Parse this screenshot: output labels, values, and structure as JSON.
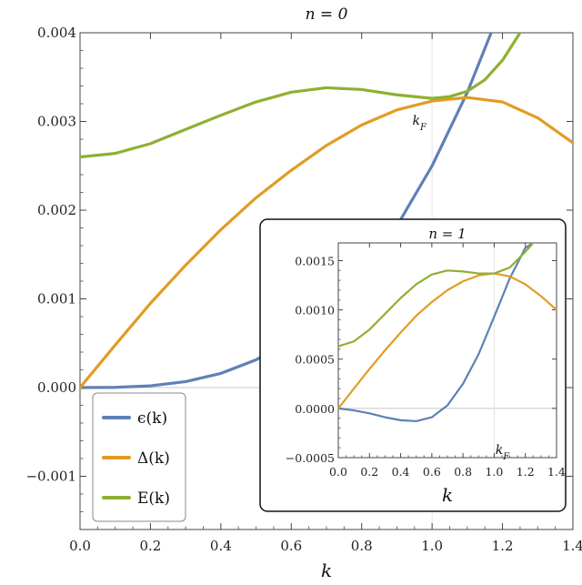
{
  "chart_data": [
    {
      "type": "line",
      "title": "n = 0",
      "xlabel": "k",
      "ylabel": "",
      "xlim": [
        0,
        1.4
      ],
      "ylim": [
        -0.0016,
        0.004
      ],
      "x_ticks": [
        "0.0",
        "0.2",
        "0.4",
        "0.6",
        "0.8",
        "1.0",
        "1.2",
        "1.4"
      ],
      "y_ticks": [
        "0.004",
        "0.003",
        "0.002",
        "0.001",
        "0.000",
        "−0.001"
      ],
      "annotation": "k_F",
      "annotation_x": 1.0,
      "legend_position": "bottom-left",
      "legend": [
        "ϵ(k)",
        "Δ(k)",
        "E(k)"
      ],
      "series": [
        {
          "name": "ϵ(k)",
          "color": "#5E81B5",
          "x": [
            0.0,
            0.1,
            0.2,
            0.3,
            0.4,
            0.5,
            0.6,
            0.7,
            0.8,
            0.9,
            1.0,
            1.1,
            1.2
          ],
          "y": [
            0.0,
            2.5e-06,
            2e-05,
            6.75e-05,
            0.00016,
            0.0003125,
            0.00054,
            0.0008575,
            0.00128,
            0.0018225,
            0.0025,
            0.0033275,
            0.00432
          ]
        },
        {
          "name": "Δ(k)",
          "color": "#E19C24",
          "x": [
            0.0,
            0.1,
            0.2,
            0.3,
            0.4,
            0.5,
            0.6,
            0.7,
            0.8,
            0.9,
            1.0,
            1.1,
            1.2,
            1.3,
            1.4
          ],
          "y": [
            0.0,
            0.00048,
            0.00095,
            0.00138,
            0.00178,
            0.00214,
            0.00245,
            0.00273,
            0.00296,
            0.00313,
            0.00323,
            0.00327,
            0.00322,
            0.00304,
            0.00276
          ]
        },
        {
          "name": "E(k)",
          "color": "#8FB032",
          "x": [
            0.0,
            0.1,
            0.2,
            0.3,
            0.4,
            0.5,
            0.6,
            0.7,
            0.8,
            0.9,
            1.0,
            1.05,
            1.1,
            1.15,
            1.2,
            1.25
          ],
          "y": [
            0.0026,
            0.00264,
            0.00275,
            0.00291,
            0.00307,
            0.00322,
            0.00333,
            0.00338,
            0.00336,
            0.0033,
            0.00326,
            0.00328,
            0.00334,
            0.00347,
            0.00369,
            0.004
          ]
        }
      ]
    },
    {
      "type": "line",
      "title": "n = 1",
      "xlabel": "k",
      "ylabel": "",
      "xlim": [
        0,
        1.4
      ],
      "ylim": [
        -0.0005,
        0.00168
      ],
      "x_ticks": [
        "0.0",
        "0.2",
        "0.4",
        "0.6",
        "0.8",
        "1.0",
        "1.2",
        "1.4"
      ],
      "y_ticks": [
        "0.0015",
        "0.0010",
        "0.0005",
        "0.0000",
        "−0.0005"
      ],
      "annotation": "k_F",
      "annotation_x": 1.0,
      "series": [
        {
          "name": "ϵ(k)",
          "color": "#5E81B5",
          "x": [
            0.0,
            0.1,
            0.2,
            0.3,
            0.4,
            0.5,
            0.6,
            0.7,
            0.8,
            0.9,
            1.0,
            1.1,
            1.2,
            1.25
          ],
          "y": [
            0.0,
            -2e-05,
            -5e-05,
            -9e-05,
            -0.00012,
            -0.00013,
            -9e-05,
            3e-05,
            0.00025,
            0.00055,
            0.00093,
            0.00132,
            0.00163,
            0.00168
          ]
        },
        {
          "name": "Δ(k)",
          "color": "#E19C24",
          "x": [
            0.0,
            0.1,
            0.2,
            0.3,
            0.4,
            0.5,
            0.6,
            0.7,
            0.8,
            0.9,
            1.0,
            1.1,
            1.2,
            1.3,
            1.4
          ],
          "y": [
            0.0,
            0.0002,
            0.0004,
            0.00059,
            0.00077,
            0.00094,
            0.00108,
            0.0012,
            0.00129,
            0.00135,
            0.00137,
            0.00134,
            0.00126,
            0.00114,
            0.001
          ]
        },
        {
          "name": "E(k)",
          "color": "#8FB032",
          "x": [
            0.0,
            0.1,
            0.2,
            0.3,
            0.4,
            0.5,
            0.6,
            0.7,
            0.8,
            0.9,
            1.0,
            1.1,
            1.2,
            1.25
          ],
          "y": [
            0.00063,
            0.00068,
            0.0008,
            0.00096,
            0.00112,
            0.00126,
            0.00136,
            0.0014,
            0.00139,
            0.00137,
            0.00137,
            0.00143,
            0.00159,
            0.00168
          ]
        }
      ]
    }
  ]
}
